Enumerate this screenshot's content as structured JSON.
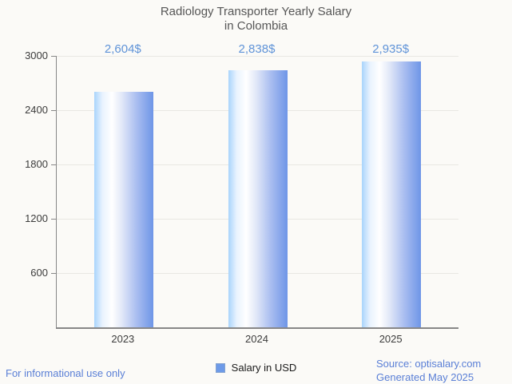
{
  "title": {
    "line1": "Radiology Transporter Yearly Salary",
    "line2": "in Colombia"
  },
  "chart_data": {
    "type": "bar",
    "title": "Radiology Transporter Yearly Salary in Colombia",
    "categories": [
      "2023",
      "2024",
      "2025"
    ],
    "series": [
      {
        "name": "Salary in USD",
        "values": [
          2604,
          2838,
          2935
        ]
      }
    ],
    "value_labels": [
      "2,604$",
      "2,838$",
      "2,935$"
    ],
    "xlabel": "",
    "ylabel": "",
    "ylim": [
      0,
      3000
    ],
    "yticks": [
      600,
      1200,
      1800,
      2400,
      3000
    ],
    "grid": true,
    "legend_position": "bottom-center"
  },
  "legend": {
    "label": "Salary in USD"
  },
  "footer": {
    "disclaimer": "For informational use only",
    "source": "Source: optisalary.com",
    "generated": "Generated May 2025"
  },
  "colors": {
    "background": "#fbfaf7",
    "title_text": "#565656",
    "axis_text": "#3c3c3c",
    "axis_line": "#878787",
    "gridline": "#e9e7e3",
    "value_label": "#5f93d8",
    "bar_gradient_left": "#a9d4fc",
    "bar_gradient_right": "#6e95e7",
    "legend_swatch": "#6d9ae8",
    "footer_text": "#5a7fd6"
  }
}
